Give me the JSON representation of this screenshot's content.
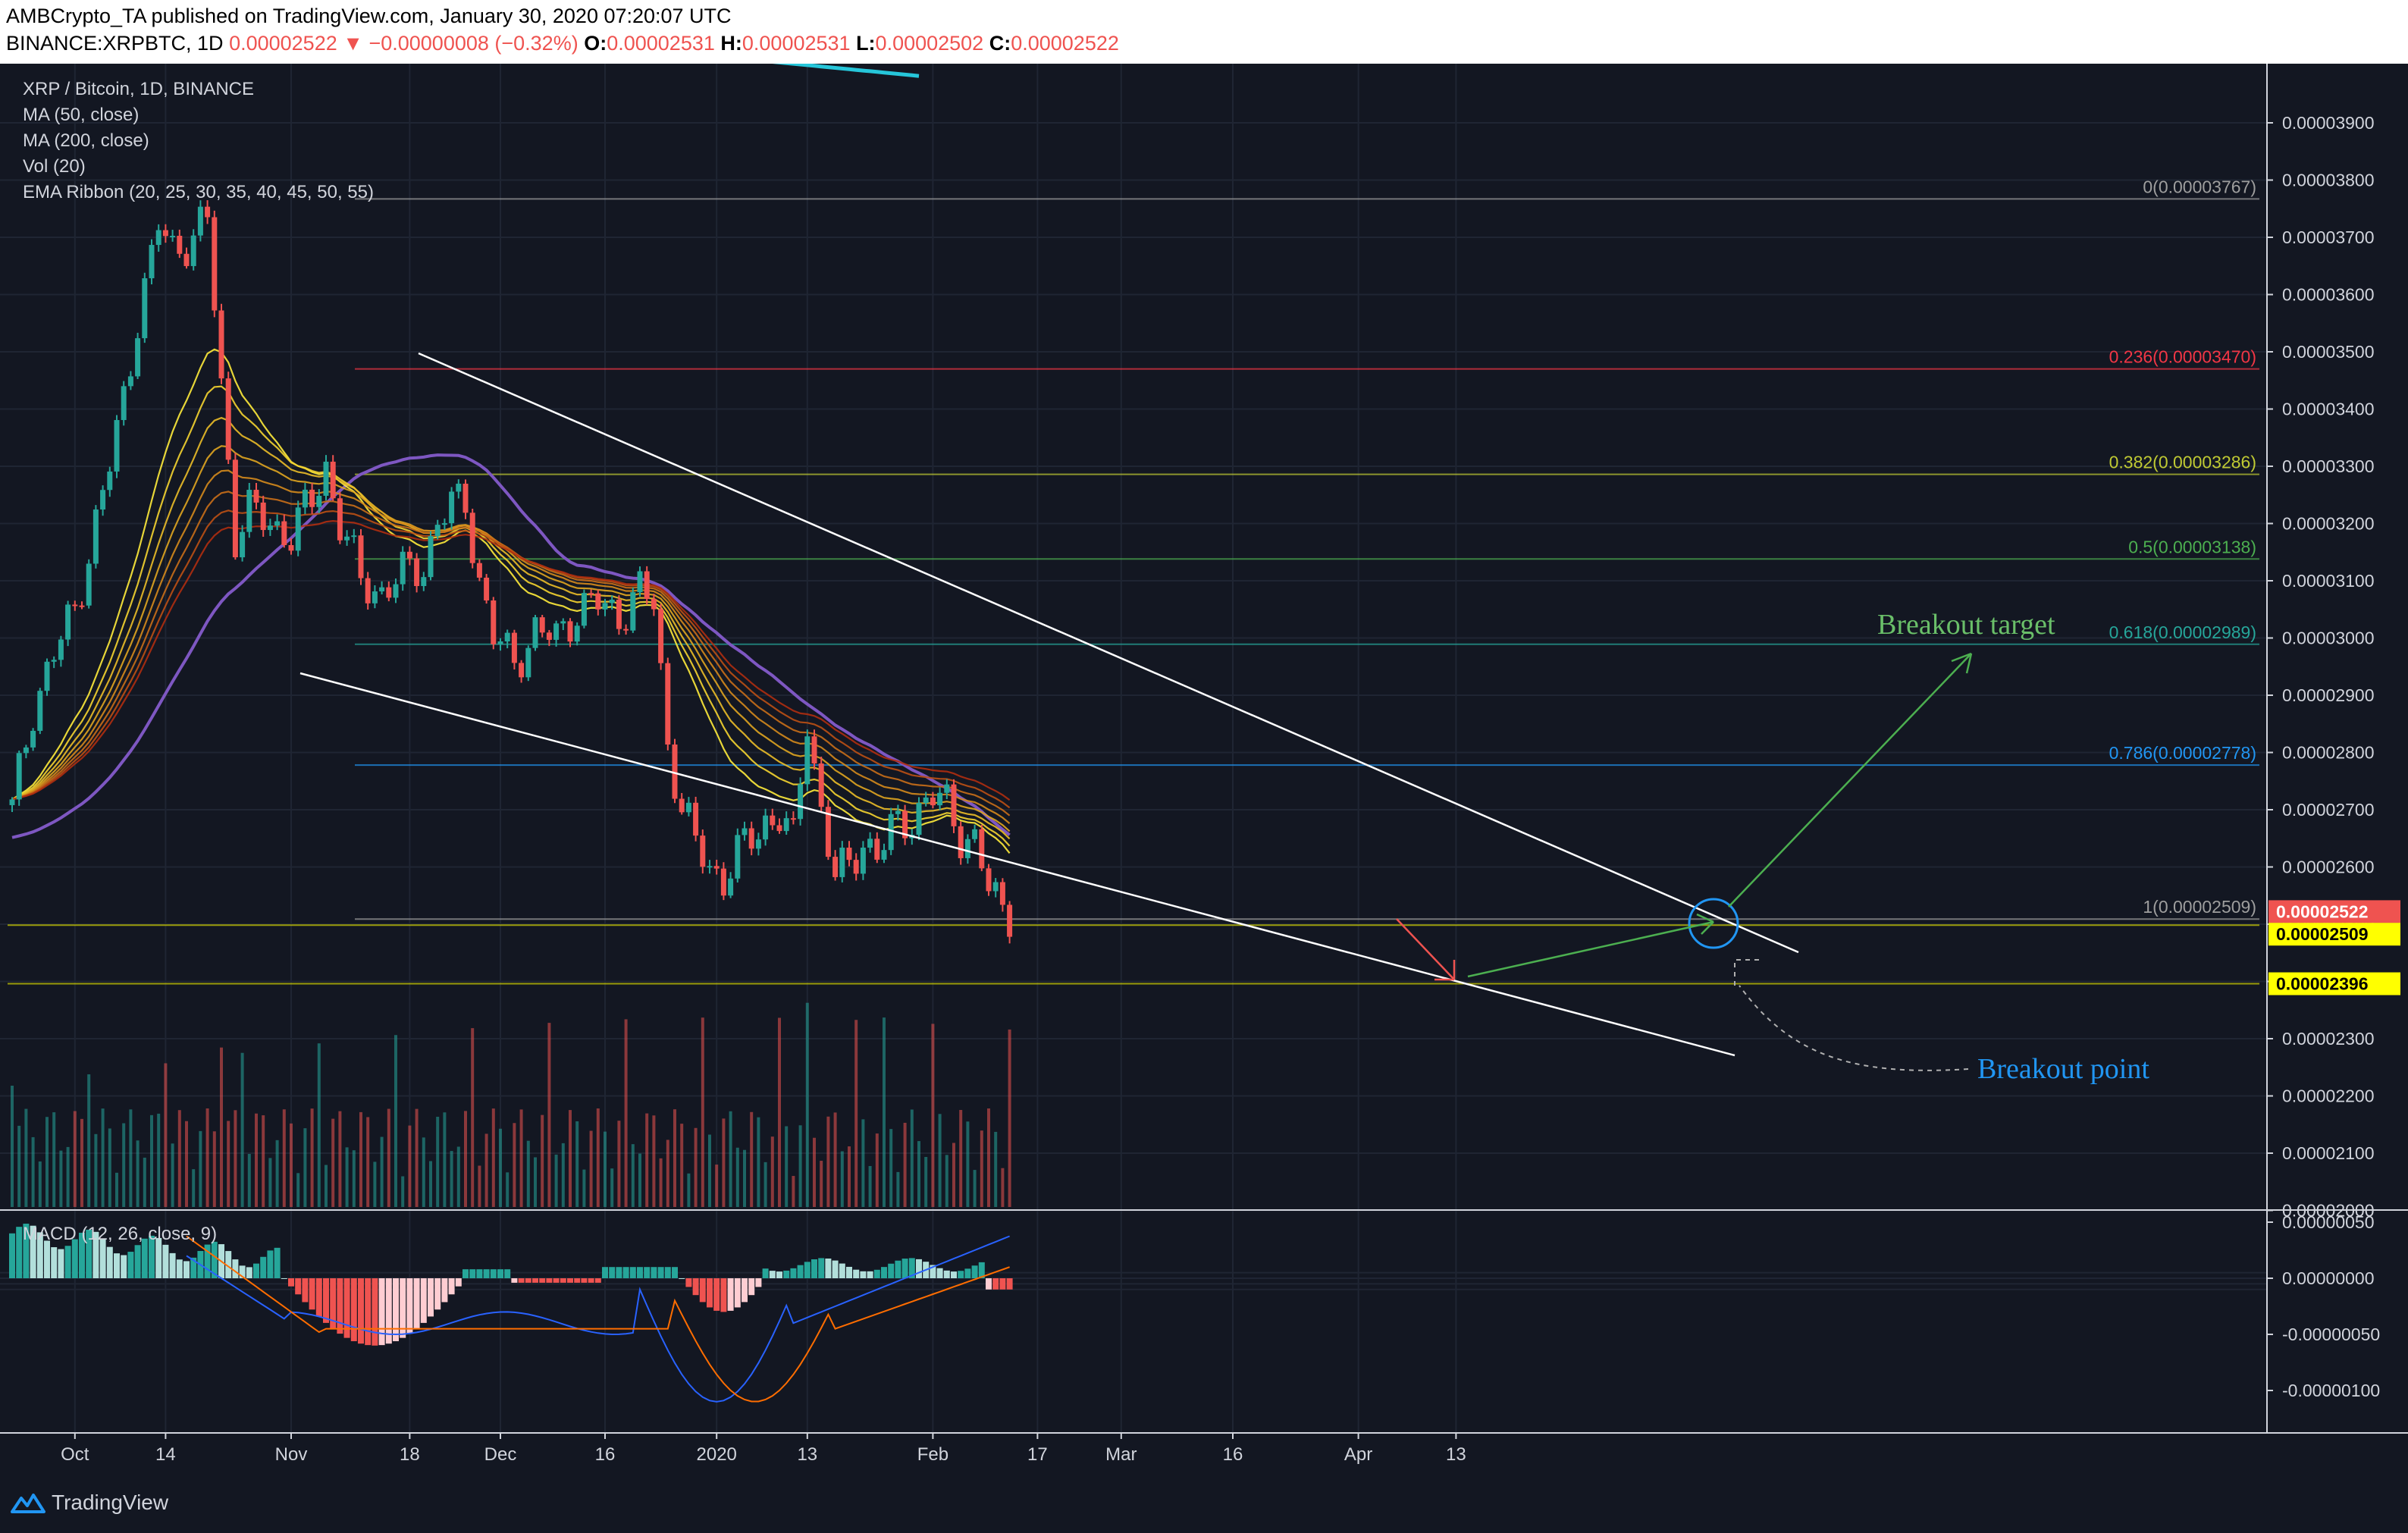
{
  "header": {
    "publisher": "AMBCrypto_TA published on TradingView.com, January 30, 2020 07:20:07 UTC",
    "symbol": "BINANCE:XRPBTC, 1D",
    "last": "0.00002522",
    "change": "▼ −0.00000008 (−0.32%)",
    "o_label": "O:",
    "o": "0.00002531",
    "h_label": "H:",
    "h": "0.00002531",
    "l_label": "L:",
    "l": "0.00002502",
    "c_label": "C:",
    "c": "0.00002522"
  },
  "legend": {
    "title": "XRP / Bitcoin, 1D, BINANCE",
    "ma50": "MA (50, close)",
    "ma200": "MA (200, close)",
    "vol": "Vol (20)",
    "ema": "EMA Ribbon (20, 25, 30, 35, 40, 45, 50, 55)",
    "macd": "MACD (12, 26, close, 9)"
  },
  "colors": {
    "background": "#131722",
    "up": "#26a69a",
    "down": "#ef5350",
    "ma50": "#7e57c2",
    "ma200": "#26c6da",
    "wedge": "#ffffff",
    "macd_line": "#2962ff",
    "signal_line": "#ff6d00"
  },
  "chart_data": {
    "type": "candlestick",
    "x_ticks": [
      "Oct",
      "14",
      "Nov",
      "18",
      "Dec",
      "16",
      "2020",
      "13",
      "Feb",
      "17",
      "Mar",
      "16",
      "Apr",
      "13"
    ],
    "y_ticks": [
      "0.00003900",
      "0.00003800",
      "0.00003700",
      "0.00003600",
      "0.00003500",
      "0.00003400",
      "0.00003300",
      "0.00003200",
      "0.00003100",
      "0.00003000",
      "0.00002900",
      "0.00002800",
      "0.00002700",
      "0.00002600",
      "0.00002500",
      "0.00002400",
      "0.00002300",
      "0.00002200",
      "0.00002100",
      "0.00002000"
    ],
    "ylim": [
      2e-05,
      3.98e-05
    ],
    "current_price": "0.00002522",
    "price_tags": [
      {
        "label": "0.00002522",
        "value": 2.522e-05,
        "color": "#ef5350"
      },
      {
        "label": "0.00002509",
        "value": 2.509e-05,
        "color": "#ffff00"
      },
      {
        "label": "0.00002396",
        "value": 2.396e-05,
        "color": "#ffff00"
      }
    ],
    "fib_levels": [
      {
        "label": "0(0.00003767)",
        "value": 3.767e-05,
        "color": "#9e9e9e"
      },
      {
        "label": "0.236(0.00003470)",
        "value": 3.47e-05,
        "color": "#f23645"
      },
      {
        "label": "0.382(0.00003286)",
        "value": 3.286e-05,
        "color": "#c0ca33"
      },
      {
        "label": "0.5(0.00003138)",
        "value": 3.138e-05,
        "color": "#4caf50"
      },
      {
        "label": "0.618(0.00002989)",
        "value": 2.989e-05,
        "color": "#26a69a"
      },
      {
        "label": "0.786(0.00002778)",
        "value": 2.778e-05,
        "color": "#2196f3"
      },
      {
        "label": "1(0.00002509)",
        "value": 2.509e-05,
        "color": "#9e9e9e"
      }
    ],
    "macd_ticks": [
      "0.00000050",
      "0.00000000",
      "-0.00000050",
      "-0.00000100"
    ],
    "annotations": {
      "breakout_target": "Breakout target",
      "breakout_point": "Breakout point"
    }
  },
  "footer": {
    "brand": "TradingView"
  }
}
